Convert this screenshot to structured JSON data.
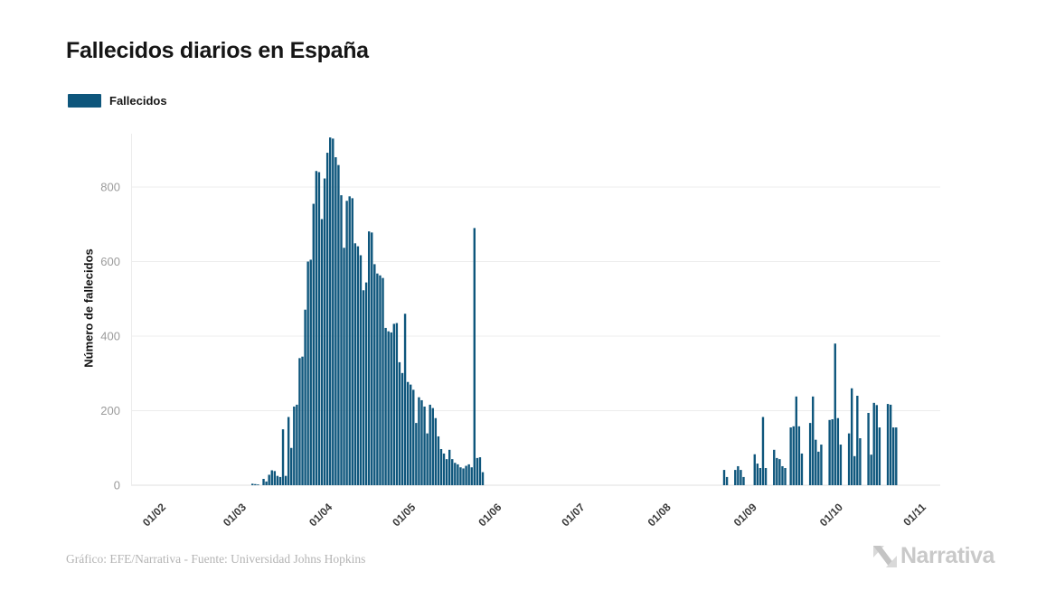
{
  "page": {
    "background": "#ffffff"
  },
  "header": {
    "title": "Fallecidos diarios en España"
  },
  "legend": {
    "items": [
      {
        "label": "Fallecidos",
        "color": "#0E567C"
      }
    ]
  },
  "chart_data": {
    "type": "bar",
    "title": "Fallecidos diarios en España",
    "series_name": "Fallecidos",
    "bar_color": "#0E567C",
    "ylabel": "Número de fallecidos",
    "y_ticks": [
      0,
      200,
      400,
      600,
      800
    ],
    "ylim": [
      0,
      950
    ],
    "grid": true,
    "legend_position": "top-left",
    "x_tick_labels": [
      "01/02",
      "01/03",
      "01/04",
      "01/05",
      "01/06",
      "01/07",
      "01/08",
      "01/09",
      "01/10",
      "01/11"
    ],
    "month_tick_day_offsets": [
      0,
      29,
      60,
      90,
      121,
      151,
      182,
      213,
      244,
      274
    ],
    "values_start_at_label": "01/02",
    "days_per_point": 1,
    "values": [
      0,
      0,
      0,
      0,
      0,
      0,
      0,
      0,
      0,
      0,
      0,
      0,
      0,
      0,
      0,
      0,
      0,
      0,
      0,
      0,
      0,
      0,
      0,
      0,
      0,
      0,
      0,
      0,
      0,
      0,
      0,
      0,
      0,
      4,
      3,
      2,
      0,
      17,
      10,
      28,
      40,
      38,
      25,
      22,
      150,
      25,
      183,
      100,
      211,
      216,
      341,
      345,
      471,
      600,
      605,
      755,
      843,
      840,
      714,
      823,
      892,
      933,
      930,
      880,
      859,
      778,
      637,
      763,
      775,
      770,
      649,
      641,
      617,
      523,
      544,
      681,
      678,
      593,
      568,
      563,
      556,
      422,
      413,
      410,
      433,
      435,
      330,
      301,
      460,
      277,
      270,
      256,
      167,
      236,
      228,
      211,
      139,
      216,
      207,
      180,
      131,
      97,
      85,
      70,
      95,
      70,
      60,
      56,
      48,
      45,
      52,
      56,
      48,
      690,
      73,
      75,
      35,
      0,
      0,
      0,
      0,
      0,
      0,
      0,
      0,
      0,
      0,
      0,
      0,
      0,
      0,
      0,
      0,
      0,
      0,
      0,
      0,
      0,
      0,
      0,
      0,
      0,
      0,
      0,
      0,
      0,
      0,
      0,
      0,
      0,
      0,
      0,
      0,
      0,
      0,
      0,
      0,
      0,
      0,
      0,
      0,
      0,
      0,
      0,
      0,
      0,
      0,
      0,
      0,
      0,
      0,
      0,
      0,
      0,
      0,
      0,
      0,
      0,
      0,
      0,
      0,
      0,
      0,
      0,
      0,
      0,
      0,
      0,
      0,
      0,
      0,
      0,
      0,
      0,
      0,
      0,
      0,
      0,
      0,
      0,
      0,
      0,
      0,
      41,
      22,
      0,
      0,
      41,
      51,
      41,
      22,
      0,
      0,
      0,
      83,
      58,
      46,
      183,
      46,
      0,
      0,
      95,
      73,
      70,
      51,
      46,
      0,
      155,
      158,
      238,
      158,
      85,
      0,
      0,
      167,
      238,
      122,
      90,
      109,
      0,
      0,
      175,
      177,
      380,
      180,
      109,
      0,
      0,
      139,
      260,
      78,
      240,
      126,
      0,
      0,
      194,
      82,
      221,
      215,
      155,
      0,
      0,
      218,
      216,
      155,
      155,
      0,
      0,
      0,
      0,
      0,
      0,
      0,
      0
    ],
    "colors": {
      "gridline": "#ececec",
      "zero_line": "#dfdfdf",
      "axis_line": "#ececec",
      "y_tick_label": "#9b9b9b",
      "x_tick_label": "#3a3a3a"
    }
  },
  "footer": {
    "credit": "Gráfico: EFE/Narrativa - Fuente: Universidad Johns Hopkins",
    "brand": "Narrativa"
  }
}
